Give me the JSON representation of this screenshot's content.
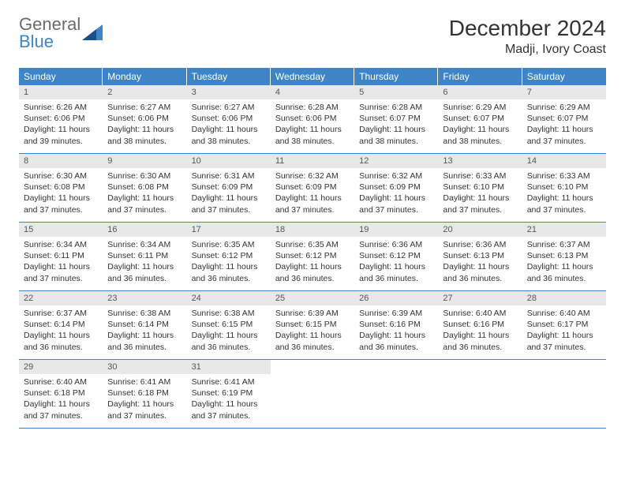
{
  "brand": {
    "line1": "General",
    "line2": "Blue"
  },
  "title": {
    "month": "December 2024",
    "location": "Madji, Ivory Coast"
  },
  "colors": {
    "header_bg": "#3d85c6",
    "header_text": "#ffffff",
    "daynum_bg": "#e8e8e8",
    "border": "#3d85c6",
    "body_text": "#333333"
  },
  "dow": [
    "Sunday",
    "Monday",
    "Tuesday",
    "Wednesday",
    "Thursday",
    "Friday",
    "Saturday"
  ],
  "weeks": [
    [
      {
        "n": "1",
        "sunrise": "Sunrise: 6:26 AM",
        "sunset": "Sunset: 6:06 PM",
        "daylight": "Daylight: 11 hours and 39 minutes."
      },
      {
        "n": "2",
        "sunrise": "Sunrise: 6:27 AM",
        "sunset": "Sunset: 6:06 PM",
        "daylight": "Daylight: 11 hours and 38 minutes."
      },
      {
        "n": "3",
        "sunrise": "Sunrise: 6:27 AM",
        "sunset": "Sunset: 6:06 PM",
        "daylight": "Daylight: 11 hours and 38 minutes."
      },
      {
        "n": "4",
        "sunrise": "Sunrise: 6:28 AM",
        "sunset": "Sunset: 6:06 PM",
        "daylight": "Daylight: 11 hours and 38 minutes."
      },
      {
        "n": "5",
        "sunrise": "Sunrise: 6:28 AM",
        "sunset": "Sunset: 6:07 PM",
        "daylight": "Daylight: 11 hours and 38 minutes."
      },
      {
        "n": "6",
        "sunrise": "Sunrise: 6:29 AM",
        "sunset": "Sunset: 6:07 PM",
        "daylight": "Daylight: 11 hours and 38 minutes."
      },
      {
        "n": "7",
        "sunrise": "Sunrise: 6:29 AM",
        "sunset": "Sunset: 6:07 PM",
        "daylight": "Daylight: 11 hours and 37 minutes."
      }
    ],
    [
      {
        "n": "8",
        "sunrise": "Sunrise: 6:30 AM",
        "sunset": "Sunset: 6:08 PM",
        "daylight": "Daylight: 11 hours and 37 minutes."
      },
      {
        "n": "9",
        "sunrise": "Sunrise: 6:30 AM",
        "sunset": "Sunset: 6:08 PM",
        "daylight": "Daylight: 11 hours and 37 minutes."
      },
      {
        "n": "10",
        "sunrise": "Sunrise: 6:31 AM",
        "sunset": "Sunset: 6:09 PM",
        "daylight": "Daylight: 11 hours and 37 minutes."
      },
      {
        "n": "11",
        "sunrise": "Sunrise: 6:32 AM",
        "sunset": "Sunset: 6:09 PM",
        "daylight": "Daylight: 11 hours and 37 minutes."
      },
      {
        "n": "12",
        "sunrise": "Sunrise: 6:32 AM",
        "sunset": "Sunset: 6:09 PM",
        "daylight": "Daylight: 11 hours and 37 minutes."
      },
      {
        "n": "13",
        "sunrise": "Sunrise: 6:33 AM",
        "sunset": "Sunset: 6:10 PM",
        "daylight": "Daylight: 11 hours and 37 minutes."
      },
      {
        "n": "14",
        "sunrise": "Sunrise: 6:33 AM",
        "sunset": "Sunset: 6:10 PM",
        "daylight": "Daylight: 11 hours and 37 minutes."
      }
    ],
    [
      {
        "n": "15",
        "sunrise": "Sunrise: 6:34 AM",
        "sunset": "Sunset: 6:11 PM",
        "daylight": "Daylight: 11 hours and 37 minutes."
      },
      {
        "n": "16",
        "sunrise": "Sunrise: 6:34 AM",
        "sunset": "Sunset: 6:11 PM",
        "daylight": "Daylight: 11 hours and 36 minutes."
      },
      {
        "n": "17",
        "sunrise": "Sunrise: 6:35 AM",
        "sunset": "Sunset: 6:12 PM",
        "daylight": "Daylight: 11 hours and 36 minutes."
      },
      {
        "n": "18",
        "sunrise": "Sunrise: 6:35 AM",
        "sunset": "Sunset: 6:12 PM",
        "daylight": "Daylight: 11 hours and 36 minutes."
      },
      {
        "n": "19",
        "sunrise": "Sunrise: 6:36 AM",
        "sunset": "Sunset: 6:12 PM",
        "daylight": "Daylight: 11 hours and 36 minutes."
      },
      {
        "n": "20",
        "sunrise": "Sunrise: 6:36 AM",
        "sunset": "Sunset: 6:13 PM",
        "daylight": "Daylight: 11 hours and 36 minutes."
      },
      {
        "n": "21",
        "sunrise": "Sunrise: 6:37 AM",
        "sunset": "Sunset: 6:13 PM",
        "daylight": "Daylight: 11 hours and 36 minutes."
      }
    ],
    [
      {
        "n": "22",
        "sunrise": "Sunrise: 6:37 AM",
        "sunset": "Sunset: 6:14 PM",
        "daylight": "Daylight: 11 hours and 36 minutes."
      },
      {
        "n": "23",
        "sunrise": "Sunrise: 6:38 AM",
        "sunset": "Sunset: 6:14 PM",
        "daylight": "Daylight: 11 hours and 36 minutes."
      },
      {
        "n": "24",
        "sunrise": "Sunrise: 6:38 AM",
        "sunset": "Sunset: 6:15 PM",
        "daylight": "Daylight: 11 hours and 36 minutes."
      },
      {
        "n": "25",
        "sunrise": "Sunrise: 6:39 AM",
        "sunset": "Sunset: 6:15 PM",
        "daylight": "Daylight: 11 hours and 36 minutes."
      },
      {
        "n": "26",
        "sunrise": "Sunrise: 6:39 AM",
        "sunset": "Sunset: 6:16 PM",
        "daylight": "Daylight: 11 hours and 36 minutes."
      },
      {
        "n": "27",
        "sunrise": "Sunrise: 6:40 AM",
        "sunset": "Sunset: 6:16 PM",
        "daylight": "Daylight: 11 hours and 36 minutes."
      },
      {
        "n": "28",
        "sunrise": "Sunrise: 6:40 AM",
        "sunset": "Sunset: 6:17 PM",
        "daylight": "Daylight: 11 hours and 37 minutes."
      }
    ],
    [
      {
        "n": "29",
        "sunrise": "Sunrise: 6:40 AM",
        "sunset": "Sunset: 6:18 PM",
        "daylight": "Daylight: 11 hours and 37 minutes."
      },
      {
        "n": "30",
        "sunrise": "Sunrise: 6:41 AM",
        "sunset": "Sunset: 6:18 PM",
        "daylight": "Daylight: 11 hours and 37 minutes."
      },
      {
        "n": "31",
        "sunrise": "Sunrise: 6:41 AM",
        "sunset": "Sunset: 6:19 PM",
        "daylight": "Daylight: 11 hours and 37 minutes."
      },
      null,
      null,
      null,
      null
    ]
  ]
}
